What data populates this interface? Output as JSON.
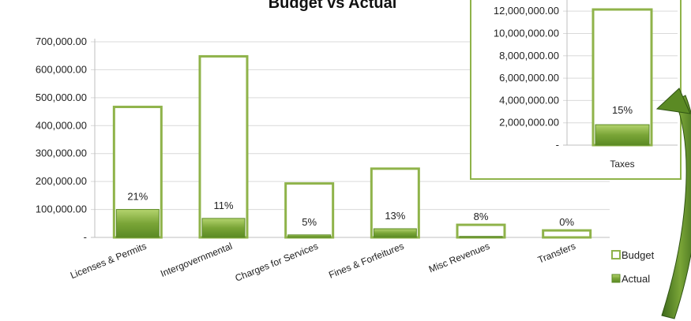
{
  "chart_data": [
    {
      "type": "bar",
      "title": "Budget vs Actual",
      "categories": [
        "Licenses & Permits",
        "Intergovernmental",
        "Charges for Services",
        "Fines & Forfeitures",
        "Misc Revenues",
        "Transfers"
      ],
      "series": [
        {
          "name": "Budget",
          "values": [
            467000,
            648000,
            193000,
            246000,
            45000,
            25000
          ]
        },
        {
          "name": "Actual",
          "values": [
            100000,
            68000,
            9000,
            31000,
            3600,
            0
          ]
        }
      ],
      "percent_labels": [
        "21%",
        "11%",
        "5%",
        "13%",
        "8%",
        "0%"
      ],
      "yticks": [
        "-",
        "100,000.00",
        "200,000.00",
        "300,000.00",
        "400,000.00",
        "500,000.00",
        "600,000.00",
        "700,000.00"
      ],
      "ylim": [
        0,
        700000
      ],
      "legend_position": "right",
      "colors": {
        "budget_outline": "#8fb34a",
        "actual_fill": "#7aa537",
        "grid": "#d9d9d9"
      }
    },
    {
      "type": "bar",
      "categories": [
        "Taxes"
      ],
      "series": [
        {
          "name": "Budget",
          "values": [
            12150000
          ]
        },
        {
          "name": "Actual",
          "values": [
            1830000
          ]
        }
      ],
      "percent_labels": [
        "15%"
      ],
      "yticks": [
        "-",
        "2,000,000.00",
        "4,000,000.00",
        "6,000,000.00",
        "8,000,000.00",
        "10,000,000.00",
        "12,000,000.00"
      ],
      "ylim": [
        0,
        13000000
      ]
    }
  ],
  "legend": [
    {
      "label": "Budget",
      "icon": "outline-square"
    },
    {
      "label": "Actual",
      "icon": "filled-square"
    }
  ]
}
